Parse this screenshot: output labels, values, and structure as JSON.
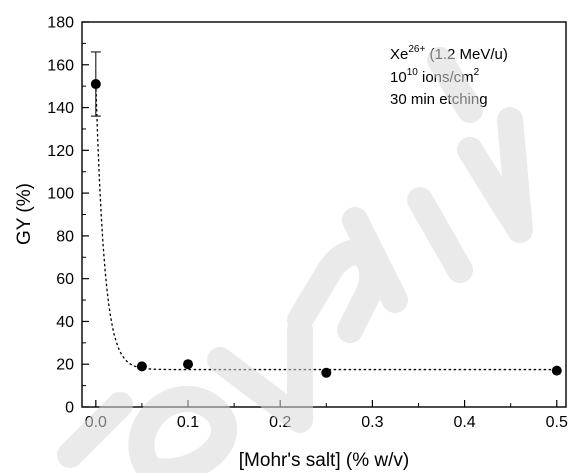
{
  "chart_data": {
    "type": "scatter",
    "xlabel": "[Mohr's salt] (% w/v)",
    "ylabel": "GY (%)",
    "xlim": [
      -0.015,
      0.51
    ],
    "ylim": [
      0,
      180
    ],
    "x_ticks": [
      "0.0",
      "0.1",
      "0.2",
      "0.3",
      "0.4",
      "0.5"
    ],
    "y_ticks": [
      "0",
      "20",
      "40",
      "60",
      "80",
      "100",
      "120",
      "140",
      "160",
      "180"
    ],
    "annotation": {
      "line1_base": "Xe",
      "line1_sup": "26+",
      "line1_rest": " (1.2 MeV/u)",
      "line2_base": "10",
      "line2_sup": "10",
      "line2_rest": " ions/cm",
      "line2_sup2": "2",
      "line3": "30 min etching"
    },
    "series": [
      {
        "points": [
          {
            "x": 0.0,
            "y": 151,
            "yerr": 15
          },
          {
            "x": 0.05,
            "y": 19
          },
          {
            "x": 0.1,
            "y": 20
          },
          {
            "x": 0.25,
            "y": 16
          },
          {
            "x": 0.5,
            "y": 17
          }
        ],
        "fit": {
          "model": "exponential decay",
          "style": "dotted",
          "y0": 17.5,
          "A": 133.5,
          "k": 0.0095
        }
      }
    ],
    "grid": false,
    "watermark_color": "#d9d9d9"
  }
}
